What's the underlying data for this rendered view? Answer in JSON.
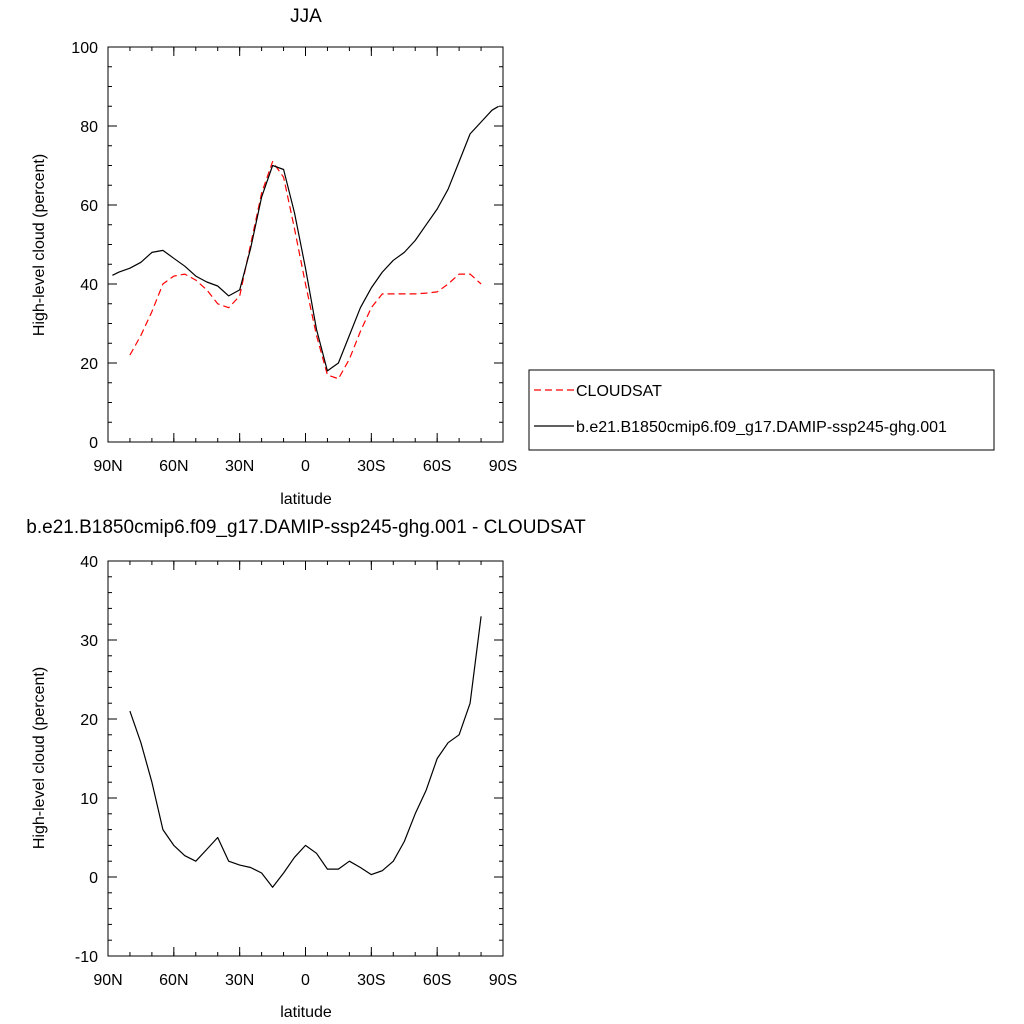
{
  "chart_data": [
    {
      "type": "line",
      "title": "JJA",
      "xlabel": "latitude",
      "ylabel": "High-level cloud (percent)",
      "xlim": [
        -90,
        90
      ],
      "ylim": [
        0,
        100
      ],
      "x_ticks": [
        -90,
        -60,
        -30,
        0,
        30,
        60,
        90
      ],
      "x_tick_labels": [
        "90N",
        "60N",
        "30N",
        "0",
        "30S",
        "60S",
        "90S"
      ],
      "y_ticks": [
        0,
        20,
        40,
        60,
        80,
        100
      ],
      "y_tick_labels": [
        "0",
        "20",
        "40",
        "60",
        "80",
        "100"
      ],
      "legend_position": "right",
      "series": [
        {
          "name": "CLOUDSAT",
          "color": "#ff0000",
          "dash": "dashed",
          "x": [
            -80,
            -75,
            -70,
            -65,
            -60,
            -55,
            -50,
            -45,
            -40,
            -35,
            -30,
            -25,
            -20,
            -15,
            -10,
            -5,
            0,
            5,
            10,
            15,
            20,
            25,
            30,
            35,
            40,
            45,
            50,
            55,
            60,
            65,
            70,
            75,
            80
          ],
          "y": [
            22,
            27,
            33,
            40,
            42,
            42.5,
            41,
            38.5,
            35,
            34,
            37,
            50,
            63,
            71,
            67,
            54,
            40,
            27,
            17,
            16,
            21,
            28,
            34,
            37.5,
            37.5,
            37.5,
            37.5,
            37.7,
            38,
            40,
            42.5,
            42.5,
            40
          ]
        },
        {
          "name": "b.e21.B1850cmip6.f09_g17.DAMIP-ssp245-ghg.001",
          "color": "#000000",
          "dash": "solid",
          "x": [
            -88,
            -85,
            -80,
            -75,
            -70,
            -65,
            -60,
            -55,
            -50,
            -45,
            -40,
            -35,
            -30,
            -25,
            -20,
            -15,
            -10,
            -5,
            0,
            5,
            10,
            15,
            20,
            25,
            30,
            35,
            40,
            45,
            50,
            55,
            60,
            65,
            70,
            75,
            80,
            85,
            88
          ],
          "y": [
            42.2,
            43,
            44,
            45.5,
            48,
            48.5,
            46.5,
            44.5,
            42,
            40.5,
            39.5,
            37,
            38.5,
            49,
            62,
            70,
            69,
            58,
            44,
            28.5,
            18,
            20,
            27,
            34,
            39,
            43,
            46,
            48,
            51,
            55,
            59,
            64,
            71,
            78,
            81,
            84,
            85
          ]
        }
      ]
    },
    {
      "type": "line",
      "title": "b.e21.B1850cmip6.f09_g17.DAMIP-ssp245-ghg.001 - CLOUDSAT",
      "xlabel": "latitude",
      "ylabel": "High-level cloud (percent)",
      "xlim": [
        -90,
        90
      ],
      "ylim": [
        -10,
        40
      ],
      "x_ticks": [
        -90,
        -60,
        -30,
        0,
        30,
        60,
        90
      ],
      "x_tick_labels": [
        "90N",
        "60N",
        "30N",
        "0",
        "30S",
        "60S",
        "90S"
      ],
      "y_ticks": [
        -10,
        0,
        10,
        20,
        30,
        40
      ],
      "y_tick_labels": [
        "-10",
        "0",
        "10",
        "20",
        "30",
        "40"
      ],
      "series": [
        {
          "color": "#000000",
          "dash": "solid",
          "x": [
            -80,
            -75,
            -70,
            -65,
            -60,
            -55,
            -50,
            -45,
            -40,
            -35,
            -30,
            -25,
            -20,
            -15,
            -10,
            -5,
            0,
            5,
            10,
            15,
            20,
            25,
            30,
            35,
            40,
            45,
            50,
            55,
            60,
            65,
            70,
            75,
            80
          ],
          "y": [
            21,
            17,
            12,
            6,
            4,
            2.7,
            2,
            3.5,
            5,
            2,
            1.5,
            1.2,
            0.5,
            -1.3,
            0.5,
            2.5,
            4,
            3,
            1,
            1,
            2,
            1.2,
            0.3,
            0.8,
            2,
            4.5,
            8,
            11,
            15,
            17,
            18,
            22,
            33
          ]
        }
      ]
    }
  ]
}
